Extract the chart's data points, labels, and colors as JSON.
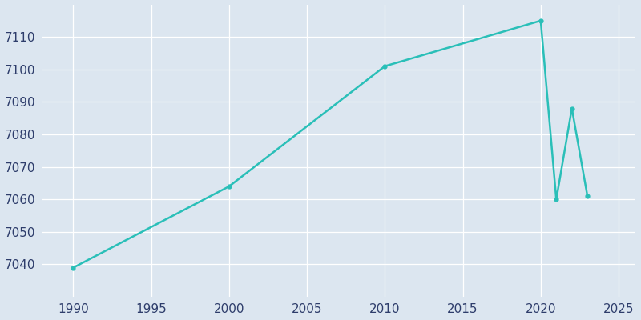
{
  "years": [
    1990,
    2000,
    2010,
    2020,
    2021,
    2022,
    2023
  ],
  "population": [
    7039,
    7064,
    7101,
    7115,
    7060,
    7088,
    7061
  ],
  "line_color": "#2abfb8",
  "bg_color": "#dce6f0",
  "plot_bg_color": "#dce6f0",
  "grid_color": "#ffffff",
  "text_color": "#2e3d6b",
  "xlim": [
    1988,
    2026
  ],
  "ylim": [
    7030,
    7120
  ],
  "yticks": [
    7040,
    7050,
    7060,
    7070,
    7080,
    7090,
    7100,
    7110
  ],
  "xticks": [
    1990,
    1995,
    2000,
    2005,
    2010,
    2015,
    2020,
    2025
  ],
  "line_width": 1.8,
  "marker": "o",
  "marker_size": 3.5,
  "tick_fontsize": 11
}
